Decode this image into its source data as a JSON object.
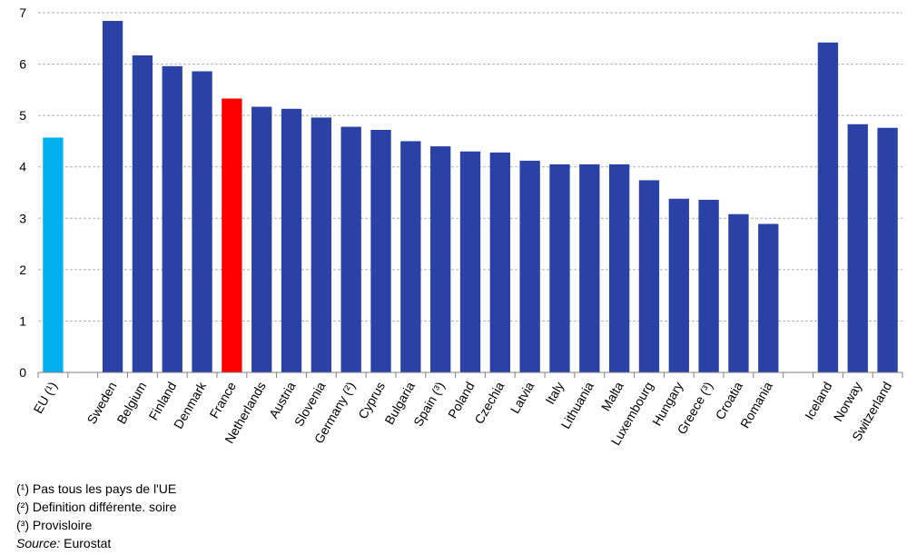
{
  "chart_data": {
    "type": "bar",
    "categories": [
      "EU (¹)",
      "",
      "Sweden",
      "Belgium",
      "Finland",
      "Denmark",
      "France",
      "Netherlands",
      "Austria",
      "Slovenia",
      "Germany (²)",
      "Cyprus",
      "Bulgaria",
      "Spain (³)",
      "Poland",
      "Czechia",
      "Latvia",
      "Italy",
      "Lithuania",
      "Malta",
      "Luxembourg",
      "Hungary",
      "Greece (³)",
      "Croatia",
      "Romania",
      "",
      "Iceland",
      "Norway",
      "Switzerland"
    ],
    "values": [
      4.57,
      null,
      6.84,
      6.17,
      5.96,
      5.86,
      5.33,
      5.17,
      5.13,
      4.96,
      4.78,
      4.72,
      4.5,
      4.4,
      4.3,
      4.28,
      4.12,
      4.05,
      4.05,
      4.05,
      3.74,
      3.38,
      3.36,
      3.08,
      2.89,
      null,
      6.42,
      4.83,
      4.76
    ],
    "bar_colors": [
      "#00b0f0",
      "",
      "#2a41a5",
      "#2a41a5",
      "#2a41a5",
      "#2a41a5",
      "#ff0000",
      "#2a41a5",
      "#2a41a5",
      "#2a41a5",
      "#2a41a5",
      "#2a41a5",
      "#2a41a5",
      "#2a41a5",
      "#2a41a5",
      "#2a41a5",
      "#2a41a5",
      "#2a41a5",
      "#2a41a5",
      "#2a41a5",
      "#2a41a5",
      "#2a41a5",
      "#2a41a5",
      "#2a41a5",
      "#2a41a5",
      "",
      "#2a41a5",
      "#2a41a5",
      "#2a41a5"
    ],
    "ylim": [
      0,
      7
    ],
    "yticks": [
      0,
      1,
      2,
      3,
      4,
      5,
      6,
      7
    ],
    "grid": "horizontal-dashed",
    "title": "",
    "xlabel": "",
    "ylabel": ""
  },
  "notes": [
    "(¹) Pas tous les pays de l'UE",
    "(²) Definition différente. soire",
    "(³) Provisloire"
  ],
  "source": {
    "label": "Source:",
    "value": "Eurostat"
  }
}
